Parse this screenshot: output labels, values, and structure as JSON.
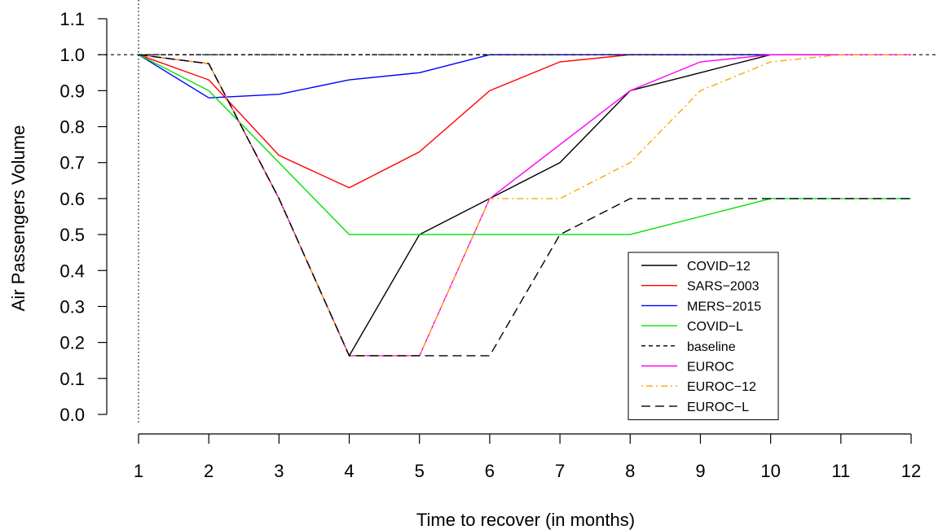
{
  "chart_data": {
    "type": "line",
    "title": "",
    "xlabel": "Time to recover (in months)",
    "ylabel": "Air Passengers Volume",
    "x": [
      1,
      2,
      3,
      4,
      5,
      6,
      7,
      8,
      9,
      10,
      11,
      12
    ],
    "xlim": [
      1,
      12
    ],
    "ylim": [
      0,
      1.1
    ],
    "x_ticks": [
      "1",
      "2",
      "3",
      "4",
      "5",
      "6",
      "7",
      "8",
      "9",
      "10",
      "11",
      "12"
    ],
    "y_ticks": [
      "0.0",
      "0.1",
      "0.2",
      "0.3",
      "0.4",
      "0.5",
      "0.6",
      "0.7",
      "0.8",
      "0.9",
      "1.0",
      "1.1"
    ],
    "grid": false,
    "legend_position": "bottom-right",
    "reference_lines": [
      {
        "orientation": "horizontal",
        "value": 1.0,
        "style": "dashed",
        "color": "#000000"
      },
      {
        "orientation": "vertical",
        "value": 1,
        "style": "dotted",
        "color": "#000000"
      }
    ],
    "series": [
      {
        "name": "COVID−12",
        "color": "#000000",
        "dash": "solid",
        "values": [
          1.0,
          0.975,
          0.6,
          0.163,
          0.5,
          0.6,
          0.7,
          0.9,
          0.95,
          1.0,
          1.0,
          1.0
        ]
      },
      {
        "name": "SARS−2003",
        "color": "#ff0000",
        "dash": "solid",
        "values": [
          1.0,
          0.93,
          0.72,
          0.63,
          0.73,
          0.9,
          0.98,
          1.0,
          1.0,
          1.0,
          1.0,
          1.0
        ]
      },
      {
        "name": "MERS−2015",
        "color": "#0000ff",
        "dash": "solid",
        "values": [
          1.0,
          0.88,
          0.89,
          0.93,
          0.95,
          1.0,
          1.0,
          1.0,
          1.0,
          1.0,
          1.0,
          1.0
        ]
      },
      {
        "name": "COVID−L",
        "color": "#00e000",
        "dash": "solid",
        "values": [
          1.0,
          0.9,
          0.7,
          0.5,
          0.5,
          0.5,
          0.5,
          0.5,
          0.55,
          0.6,
          0.6,
          0.6
        ]
      },
      {
        "name": "baseline",
        "color": "#000000",
        "dash": "short-dash",
        "values": [
          1.0,
          1.0,
          1.0,
          1.0,
          1.0,
          1.0,
          1.0,
          1.0,
          1.0,
          1.0,
          1.0,
          1.0
        ]
      },
      {
        "name": "EUROC",
        "color": "#ff00ff",
        "dash": "solid",
        "values": [
          1.0,
          0.975,
          0.6,
          0.163,
          0.163,
          0.6,
          0.75,
          0.9,
          0.98,
          1.0,
          1.0,
          1.0
        ]
      },
      {
        "name": "EUROC−12",
        "color": "#ffa500",
        "dash": "dot-dash",
        "values": [
          1.0,
          0.975,
          0.6,
          0.163,
          0.163,
          0.6,
          0.6,
          0.7,
          0.9,
          0.98,
          1.0,
          1.0
        ]
      },
      {
        "name": "EUROC−L",
        "color": "#000000",
        "dash": "long-dash",
        "values": [
          1.0,
          0.975,
          0.6,
          0.163,
          0.163,
          0.163,
          0.5,
          0.6,
          0.6,
          0.6,
          0.6,
          0.6
        ]
      }
    ]
  }
}
